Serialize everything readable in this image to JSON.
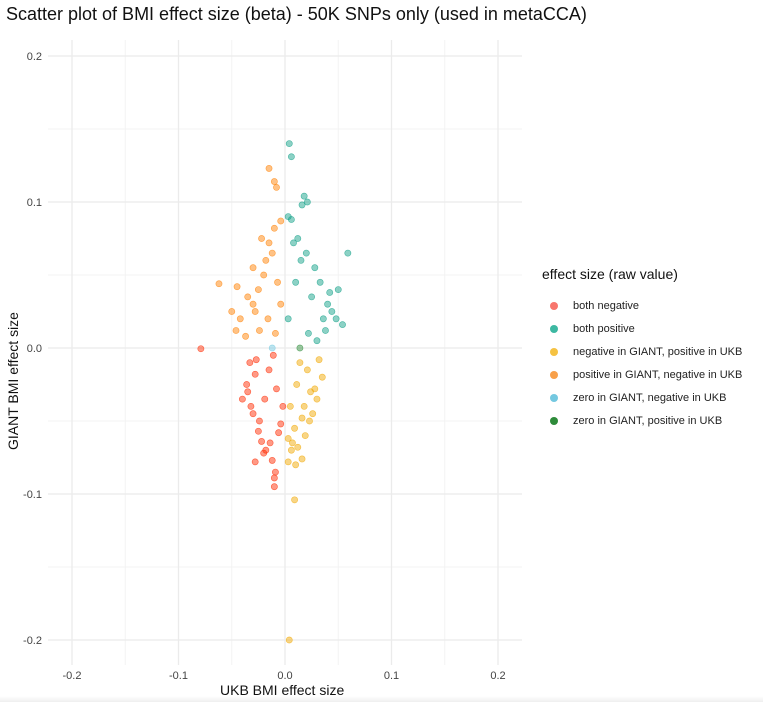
{
  "chart_data": {
    "type": "scatter",
    "title": "Scatter plot of BMI effect size (beta) - 50K SNPs only (used in metaCCA)",
    "xlabel": "UKB BMI effect size",
    "ylabel": "GIANT BMI effect size",
    "xlim": [
      -0.2,
      0.2
    ],
    "ylim": [
      -0.2,
      0.2
    ],
    "x_ticks": [
      -0.2,
      -0.1,
      0.0,
      0.1,
      0.2
    ],
    "y_ticks": [
      -0.2,
      -0.1,
      0.0,
      0.1,
      0.2
    ],
    "x_tick_labels": [
      "-0.2",
      "-0.1",
      "0.0",
      "0.1",
      "0.2"
    ],
    "y_tick_labels": [
      "-0.2",
      "-0.1",
      "0.0",
      "0.1",
      "0.2"
    ],
    "grid": true,
    "legend_placement": "right",
    "legend": {
      "title": "effect size (raw value)",
      "entries": [
        {
          "label": "both negative",
          "color": "#F8766D"
        },
        {
          "label": "both positive",
          "color": "#3DB8A2"
        },
        {
          "label": "negative in GIANT, positive in UKB",
          "color": "#F5C242"
        },
        {
          "label": "positive in GIANT, negative in UKB",
          "color": "#F8A04A"
        },
        {
          "label": "zero in GIANT, negative in UKB",
          "color": "#74C8E0"
        },
        {
          "label": "zero in GIANT, positive in UKB",
          "color": "#2E8B3A"
        }
      ]
    },
    "series": [
      {
        "name": "both negative",
        "color": "#FF2A00",
        "points": [
          {
            "x": -0.079,
            "y": -0.0005
          },
          {
            "x": -0.035,
            "y": -0.03
          },
          {
            "x": -0.03,
            "y": -0.045
          },
          {
            "x": -0.025,
            "y": -0.057
          },
          {
            "x": -0.022,
            "y": -0.064
          },
          {
            "x": -0.018,
            "y": -0.07
          },
          {
            "x": -0.012,
            "y": -0.077
          },
          {
            "x": -0.01,
            "y": -0.089
          },
          {
            "x": -0.009,
            "y": -0.085
          },
          {
            "x": -0.01,
            "y": -0.095
          },
          {
            "x": -0.02,
            "y": -0.072
          },
          {
            "x": -0.028,
            "y": -0.078
          },
          {
            "x": -0.04,
            "y": -0.035
          },
          {
            "x": -0.036,
            "y": -0.025
          },
          {
            "x": -0.032,
            "y": -0.04
          },
          {
            "x": -0.028,
            "y": -0.018
          },
          {
            "x": -0.024,
            "y": -0.05
          },
          {
            "x": -0.014,
            "y": -0.065
          },
          {
            "x": -0.006,
            "y": -0.058
          },
          {
            "x": -0.004,
            "y": -0.052
          },
          {
            "x": -0.002,
            "y": -0.04
          },
          {
            "x": -0.008,
            "y": -0.028
          },
          {
            "x": -0.015,
            "y": -0.015
          },
          {
            "x": -0.019,
            "y": -0.035
          },
          {
            "x": -0.033,
            "y": -0.01
          },
          {
            "x": -0.027,
            "y": -0.008
          },
          {
            "x": -0.011,
            "y": -0.005
          }
        ]
      },
      {
        "name": "both positive",
        "color": "#0E9F86",
        "points": [
          {
            "x": 0.004,
            "y": 0.14
          },
          {
            "x": 0.006,
            "y": 0.131
          },
          {
            "x": 0.018,
            "y": 0.104
          },
          {
            "x": 0.021,
            "y": 0.1
          },
          {
            "x": 0.016,
            "y": 0.098
          },
          {
            "x": 0.003,
            "y": 0.09
          },
          {
            "x": 0.006,
            "y": 0.088
          },
          {
            "x": 0.012,
            "y": 0.075
          },
          {
            "x": 0.059,
            "y": 0.065
          },
          {
            "x": 0.05,
            "y": 0.04
          },
          {
            "x": 0.054,
            "y": 0.016
          },
          {
            "x": 0.04,
            "y": 0.03
          },
          {
            "x": 0.033,
            "y": 0.045
          },
          {
            "x": 0.028,
            "y": 0.055
          },
          {
            "x": 0.02,
            "y": 0.065
          },
          {
            "x": 0.036,
            "y": 0.02
          },
          {
            "x": 0.044,
            "y": 0.025
          },
          {
            "x": 0.038,
            "y": 0.012
          },
          {
            "x": 0.025,
            "y": 0.035
          },
          {
            "x": 0.015,
            "y": 0.06
          },
          {
            "x": 0.008,
            "y": 0.072
          },
          {
            "x": 0.01,
            "y": 0.045
          },
          {
            "x": 0.022,
            "y": 0.01
          },
          {
            "x": 0.003,
            "y": 0.02
          },
          {
            "x": 0.03,
            "y": 0.005
          },
          {
            "x": 0.042,
            "y": 0.038
          },
          {
            "x": 0.048,
            "y": 0.02
          }
        ]
      },
      {
        "name": "negative in GIANT, positive in UKB",
        "color": "#F1A800",
        "points": [
          {
            "x": 0.004,
            "y": -0.2
          },
          {
            "x": 0.009,
            "y": -0.104
          },
          {
            "x": 0.003,
            "y": -0.078
          },
          {
            "x": 0.01,
            "y": -0.08
          },
          {
            "x": 0.016,
            "y": -0.076
          },
          {
            "x": 0.006,
            "y": -0.07
          },
          {
            "x": 0.012,
            "y": -0.068
          },
          {
            "x": 0.019,
            "y": -0.06
          },
          {
            "x": 0.026,
            "y": -0.045
          },
          {
            "x": 0.03,
            "y": -0.035
          },
          {
            "x": 0.035,
            "y": -0.02
          },
          {
            "x": 0.032,
            "y": -0.008
          },
          {
            "x": 0.024,
            "y": -0.03
          },
          {
            "x": 0.016,
            "y": -0.048
          },
          {
            "x": 0.009,
            "y": -0.055
          },
          {
            "x": 0.005,
            "y": -0.04
          },
          {
            "x": 0.021,
            "y": -0.015
          },
          {
            "x": 0.011,
            "y": -0.025
          },
          {
            "x": 0.028,
            "y": -0.028
          },
          {
            "x": 0.014,
            "y": -0.01
          },
          {
            "x": 0.003,
            "y": -0.062
          },
          {
            "x": 0.007,
            "y": -0.065
          },
          {
            "x": 0.018,
            "y": -0.04
          },
          {
            "x": 0.023,
            "y": -0.05
          }
        ]
      },
      {
        "name": "positive in GIANT, negative in UKB",
        "color": "#FF8000",
        "points": [
          {
            "x": -0.015,
            "y": 0.123
          },
          {
            "x": -0.01,
            "y": 0.114
          },
          {
            "x": -0.008,
            "y": 0.11
          },
          {
            "x": -0.004,
            "y": 0.087
          },
          {
            "x": -0.01,
            "y": 0.082
          },
          {
            "x": -0.022,
            "y": 0.075
          },
          {
            "x": -0.015,
            "y": 0.072
          },
          {
            "x": -0.018,
            "y": 0.06
          },
          {
            "x": -0.03,
            "y": 0.055
          },
          {
            "x": -0.062,
            "y": 0.044
          },
          {
            "x": -0.045,
            "y": 0.042
          },
          {
            "x": -0.05,
            "y": 0.025
          },
          {
            "x": -0.046,
            "y": 0.012
          },
          {
            "x": -0.042,
            "y": 0.02
          },
          {
            "x": -0.035,
            "y": 0.035
          },
          {
            "x": -0.03,
            "y": 0.03
          },
          {
            "x": -0.025,
            "y": 0.04
          },
          {
            "x": -0.02,
            "y": 0.05
          },
          {
            "x": -0.012,
            "y": 0.065
          },
          {
            "x": -0.007,
            "y": 0.045
          },
          {
            "x": -0.004,
            "y": 0.03
          },
          {
            "x": -0.016,
            "y": 0.02
          },
          {
            "x": -0.024,
            "y": 0.012
          },
          {
            "x": -0.037,
            "y": 0.008
          },
          {
            "x": -0.009,
            "y": 0.01
          },
          {
            "x": -0.028,
            "y": 0.025
          }
        ]
      },
      {
        "name": "zero in GIANT, negative in UKB",
        "color": "#74C8E0",
        "points": [
          {
            "x": -0.012,
            "y": 0.0
          }
        ]
      },
      {
        "name": "zero in GIANT, positive in UKB",
        "color": "#2E8B3A",
        "points": [
          {
            "x": 0.014,
            "y": 0.0
          }
        ]
      }
    ]
  }
}
